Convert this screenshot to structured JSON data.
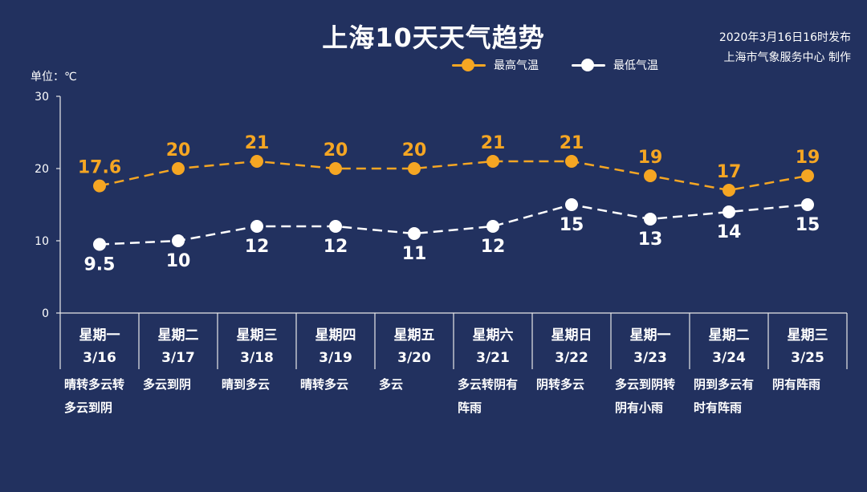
{
  "title": "上海10天天气趋势",
  "issued": "2020年3月16日16时发布",
  "agency": "上海市气象服务中心 制作",
  "unit": "单位：℃",
  "colors": {
    "background": "#22315f",
    "high": "#f5a623",
    "low": "#ffffff",
    "axis": "#e8e8e8"
  },
  "chart_data": {
    "type": "line",
    "title": "上海10天天气趋势",
    "ylabel": "单位：℃",
    "ylim": [
      0,
      30
    ],
    "yticks": [
      0,
      10,
      20,
      30
    ],
    "grid": false,
    "legend": "top-right",
    "categories": [
      "星期一",
      "星期二",
      "星期三",
      "星期四",
      "星期五",
      "星期六",
      "星期日",
      "星期一",
      "星期二",
      "星期三"
    ],
    "dates": [
      "3/16",
      "3/17",
      "3/18",
      "3/19",
      "3/20",
      "3/21",
      "3/22",
      "3/23",
      "3/24",
      "3/25"
    ],
    "series": [
      {
        "name": "最高气温",
        "values": [
          17.6,
          20,
          21,
          20,
          20,
          21,
          21,
          19,
          17,
          19
        ]
      },
      {
        "name": "最低气温",
        "values": [
          9.5,
          10,
          12,
          12,
          11,
          12,
          15,
          13,
          14,
          15
        ]
      }
    ],
    "weather": [
      [
        "晴转多云转",
        "多云到阴"
      ],
      [
        "多云到阴"
      ],
      [
        "晴到多云"
      ],
      [
        "晴转多云"
      ],
      [
        "多云"
      ],
      [
        "多云转阴有",
        "阵雨"
      ],
      [
        "阴转多云"
      ],
      [
        "多云到阴转",
        "阴有小雨"
      ],
      [
        "阴到多云有",
        "时有阵雨"
      ],
      [
        "阴有阵雨"
      ]
    ]
  }
}
